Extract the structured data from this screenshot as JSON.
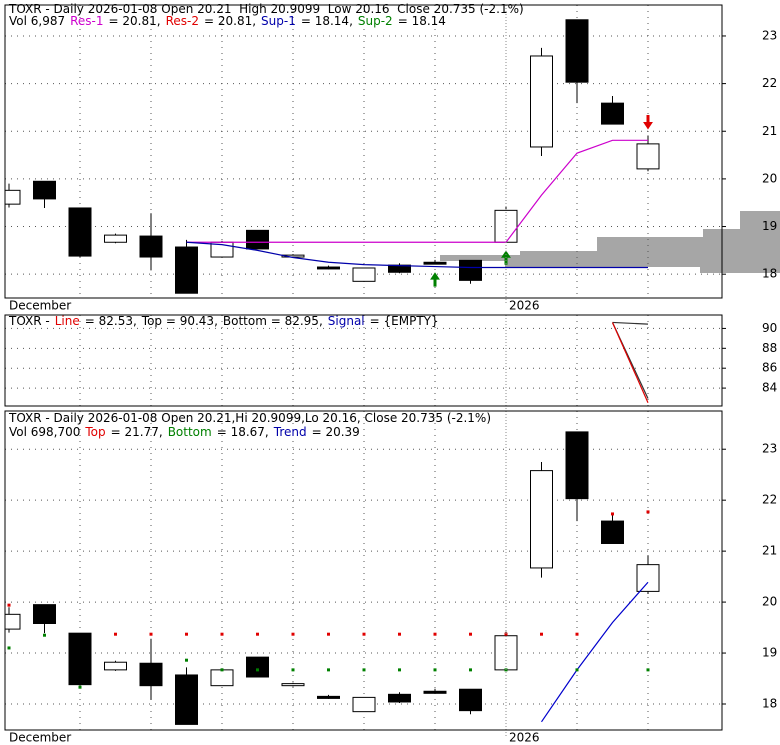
{
  "chart_data": [
    {
      "type": "candlestick",
      "header": [
        [
          {
            "text": "TOXR - Daily 2026-01-08 Open 20.21  High 20.9099  Low 20.16  Close 20.735 (-2.1%)",
            "color": "#000000"
          }
        ],
        [
          {
            "text": "Vol 6,987",
            "color": "#000000"
          },
          {
            "text": "Res-1",
            "color": "#cc00cc"
          },
          {
            "text": "= 20.81,",
            "color": "#000000"
          },
          {
            "text": "Res-2",
            "color": "#e00000"
          },
          {
            "text": "= 20.81,",
            "color": "#000000"
          },
          {
            "text": "Sup-1",
            "color": "#0000aa"
          },
          {
            "text": "= 18.14,",
            "color": "#000000"
          },
          {
            "text": "Sup-2",
            "color": "#008000"
          },
          {
            "text": "= 18.14",
            "color": "#000000"
          }
        ]
      ],
      "x_labels": [
        "December",
        "2026"
      ],
      "open": [
        19.47,
        19.95,
        19.39,
        18.67,
        18.8,
        18.57,
        18.36,
        18.92,
        18.36,
        18.15,
        17.85,
        18.19,
        18.25,
        18.29,
        18.67,
        20.67,
        23.34,
        21.59,
        20.21
      ],
      "high": [
        19.9,
        19.95,
        19.39,
        18.85,
        19.28,
        18.72,
        18.7,
        18.92,
        18.42,
        18.18,
        18.13,
        18.23,
        18.3,
        18.29,
        19.42,
        22.75,
        23.34,
        21.74,
        20.9099
      ],
      "low": [
        19.4,
        19.39,
        18.36,
        18.65,
        18.08,
        17.6,
        18.36,
        18.53,
        18.34,
        18.1,
        17.85,
        18.02,
        18.21,
        17.8,
        18.67,
        20.48,
        21.59,
        21.15,
        20.16
      ],
      "close": [
        19.76,
        19.58,
        18.38,
        18.82,
        18.36,
        17.6,
        18.67,
        18.53,
        18.4,
        18.11,
        18.13,
        18.04,
        18.21,
        17.87,
        19.34,
        22.58,
        22.03,
        21.15,
        20.735
      ],
      "series": [
        {
          "color": "#cc00cc",
          "values": [
            null,
            null,
            null,
            null,
            null,
            18.67,
            18.67,
            18.67,
            18.67,
            18.67,
            18.67,
            18.67,
            18.67,
            18.67,
            18.67,
            19.66,
            20.54,
            20.81,
            20.81
          ]
        },
        {
          "color": "#0000aa",
          "values": [
            null,
            null,
            null,
            null,
            null,
            18.67,
            18.62,
            18.5,
            18.35,
            18.25,
            18.2,
            18.18,
            18.16,
            18.14,
            18.14,
            18.14,
            18.14,
            18.14,
            18.14
          ]
        }
      ],
      "arrows": [
        {
          "x": 12,
          "dir": "up",
          "color": "#008000"
        },
        {
          "x": 14,
          "dir": "up",
          "color": "#008000"
        },
        {
          "x": 18,
          "dir": "down",
          "color": "#e00000"
        }
      ],
      "ylim": [
        17.5,
        23.65
      ],
      "yticks": [
        18,
        19,
        20,
        21,
        22,
        23
      ],
      "grid": true
    },
    {
      "type": "line",
      "header": [
        [
          {
            "text": "TOXR -",
            "color": "#000000"
          },
          {
            "text": "Line",
            "color": "#e00000"
          },
          {
            "text": "= 82.53,",
            "color": "#000000"
          },
          {
            "text": "Top = 90.43,",
            "color": "#000000"
          },
          {
            "text": "Bottom = 82.95,",
            "color": "#000000"
          },
          {
            "text": "Signal",
            "color": "#0000aa"
          },
          {
            "text": "= {EMPTY}",
            "color": "#000000"
          }
        ]
      ],
      "series": [
        {
          "color": "#333333",
          "values": [
            null,
            null,
            null,
            null,
            null,
            null,
            null,
            null,
            null,
            null,
            null,
            null,
            null,
            null,
            null,
            null,
            null,
            90.6,
            90.43
          ]
        },
        {
          "color": "#333333",
          "values": [
            null,
            null,
            null,
            null,
            null,
            null,
            null,
            null,
            null,
            null,
            null,
            null,
            null,
            null,
            null,
            null,
            null,
            90.6,
            82.95
          ]
        },
        {
          "color": "#e00000",
          "values": [
            null,
            null,
            null,
            null,
            null,
            null,
            null,
            null,
            null,
            null,
            null,
            null,
            null,
            null,
            null,
            null,
            null,
            90.6,
            82.53
          ]
        }
      ],
      "ylim": [
        82.2,
        91.35
      ],
      "yticks": [
        84,
        86,
        88,
        90
      ],
      "grid": true
    },
    {
      "type": "candlestick",
      "header": [
        [
          {
            "text": "TOXR - Daily 2026-01-08 Open 20.21,Hi 20.9099,Lo 20.16, Close 20.735 (-2.1%)",
            "color": "#000000"
          }
        ],
        [
          {
            "text": "Vol 698,700",
            "color": "#000000"
          },
          {
            "text": "Top",
            "color": "#e00000"
          },
          {
            "text": "= 21.77,",
            "color": "#000000"
          },
          {
            "text": "Bottom",
            "color": "#008000"
          },
          {
            "text": "= 18.67,",
            "color": "#000000"
          },
          {
            "text": "Trend",
            "color": "#0000aa"
          },
          {
            "text": "= 20.39",
            "color": "#000000"
          }
        ]
      ],
      "x_labels": [
        "December",
        "2026"
      ],
      "dots": [
        {
          "color": "#e00000",
          "values": [
            19.94,
            null,
            null,
            19.37,
            19.37,
            19.37,
            19.37,
            19.37,
            19.37,
            19.37,
            19.37,
            19.37,
            19.37,
            19.37,
            19.37,
            19.37,
            19.37,
            21.73,
            21.77
          ]
        },
        {
          "color": "#008000",
          "values": [
            19.1,
            19.35,
            18.33,
            null,
            null,
            18.86,
            18.67,
            18.67,
            18.67,
            18.67,
            18.67,
            18.67,
            18.67,
            18.67,
            18.67,
            null,
            18.67,
            null,
            18.67
          ]
        }
      ],
      "series": [
        {
          "color": "#0000cc",
          "values": [
            null,
            null,
            null,
            null,
            null,
            null,
            null,
            null,
            null,
            null,
            null,
            null,
            null,
            null,
            null,
            17.65,
            18.67,
            19.6,
            20.39
          ]
        }
      ],
      "ylim": [
        17.49,
        23.75
      ],
      "yticks": [
        18,
        19,
        20,
        21,
        22,
        23
      ],
      "grid": true
    }
  ]
}
